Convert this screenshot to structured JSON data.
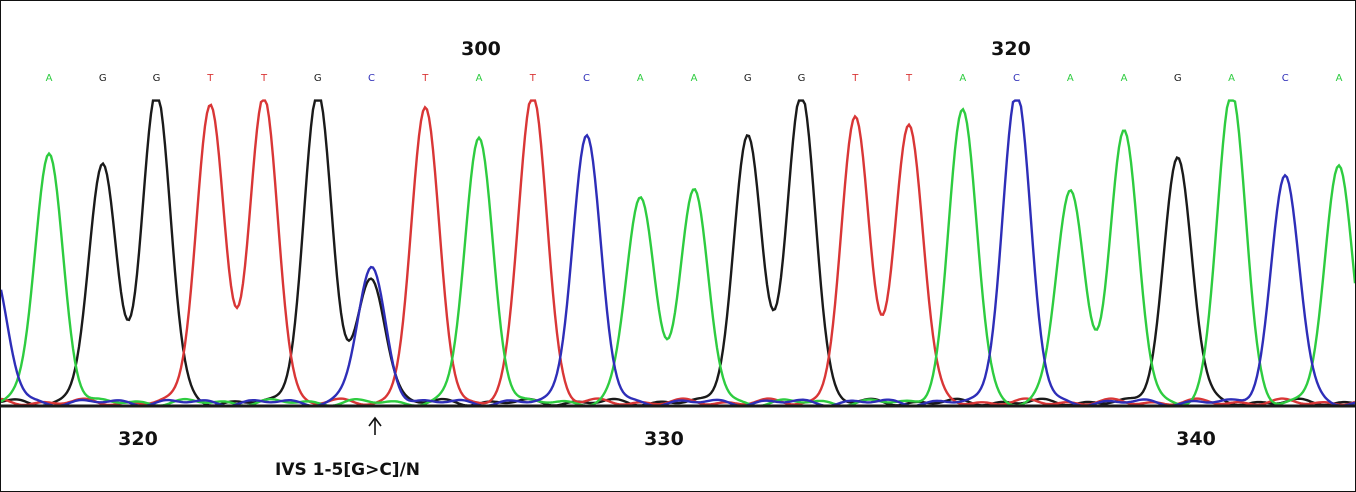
{
  "chart_data": {
    "type": "line",
    "title": "",
    "xlabel": "",
    "ylabel": "",
    "colors": {
      "A": "#2ecc40",
      "C": "#2e2eb8",
      "G": "#1a1a1a",
      "T": "#d93636"
    },
    "series": [
      {
        "name": "A"
      },
      {
        "name": "C"
      },
      {
        "name": "G"
      },
      {
        "name": "T"
      }
    ],
    "top_ticks": [
      {
        "label": "300"
      },
      {
        "label": "320"
      }
    ],
    "bottom_ticks": [
      {
        "label": "320"
      },
      {
        "label": "330"
      },
      {
        "label": "340"
      }
    ],
    "base_calls": [
      "A",
      "G",
      "G",
      "T",
      "T",
      "G",
      "C",
      "T",
      "A",
      "T",
      "C",
      "A",
      "A",
      "G",
      "G",
      "T",
      "T",
      "A",
      "C",
      "A",
      "A",
      "G",
      "A",
      "C",
      "A"
    ],
    "peaks": [
      {
        "base": "A",
        "height": 0.8
      },
      {
        "base": "G",
        "height": 0.76
      },
      {
        "base": "G",
        "height": 1.0
      },
      {
        "base": "T",
        "height": 0.96
      },
      {
        "base": "T",
        "height": 0.98
      },
      {
        "base": "G",
        "height": 1.0
      },
      {
        "base": "C",
        "height": 0.43
      },
      {
        "base": "T",
        "height": 0.94
      },
      {
        "base": "A",
        "height": 0.85
      },
      {
        "base": "T",
        "height": 1.0
      },
      {
        "base": "C",
        "height": 0.86
      },
      {
        "base": "A",
        "height": 0.66
      },
      {
        "base": "A",
        "height": 0.68
      },
      {
        "base": "G",
        "height": 0.86
      },
      {
        "base": "G",
        "height": 1.0
      },
      {
        "base": "T",
        "height": 0.91
      },
      {
        "base": "T",
        "height": 0.9
      },
      {
        "base": "A",
        "height": 0.94
      },
      {
        "base": "C",
        "height": 1.0
      },
      {
        "base": "A",
        "height": 0.68
      },
      {
        "base": "A",
        "height": 0.87
      },
      {
        "base": "G",
        "height": 0.79
      },
      {
        "base": "A",
        "height": 1.0
      },
      {
        "base": "C",
        "height": 0.73
      },
      {
        "base": "A",
        "height": 0.76
      }
    ],
    "annotation": "IVS 1-5[G>C]/N"
  }
}
